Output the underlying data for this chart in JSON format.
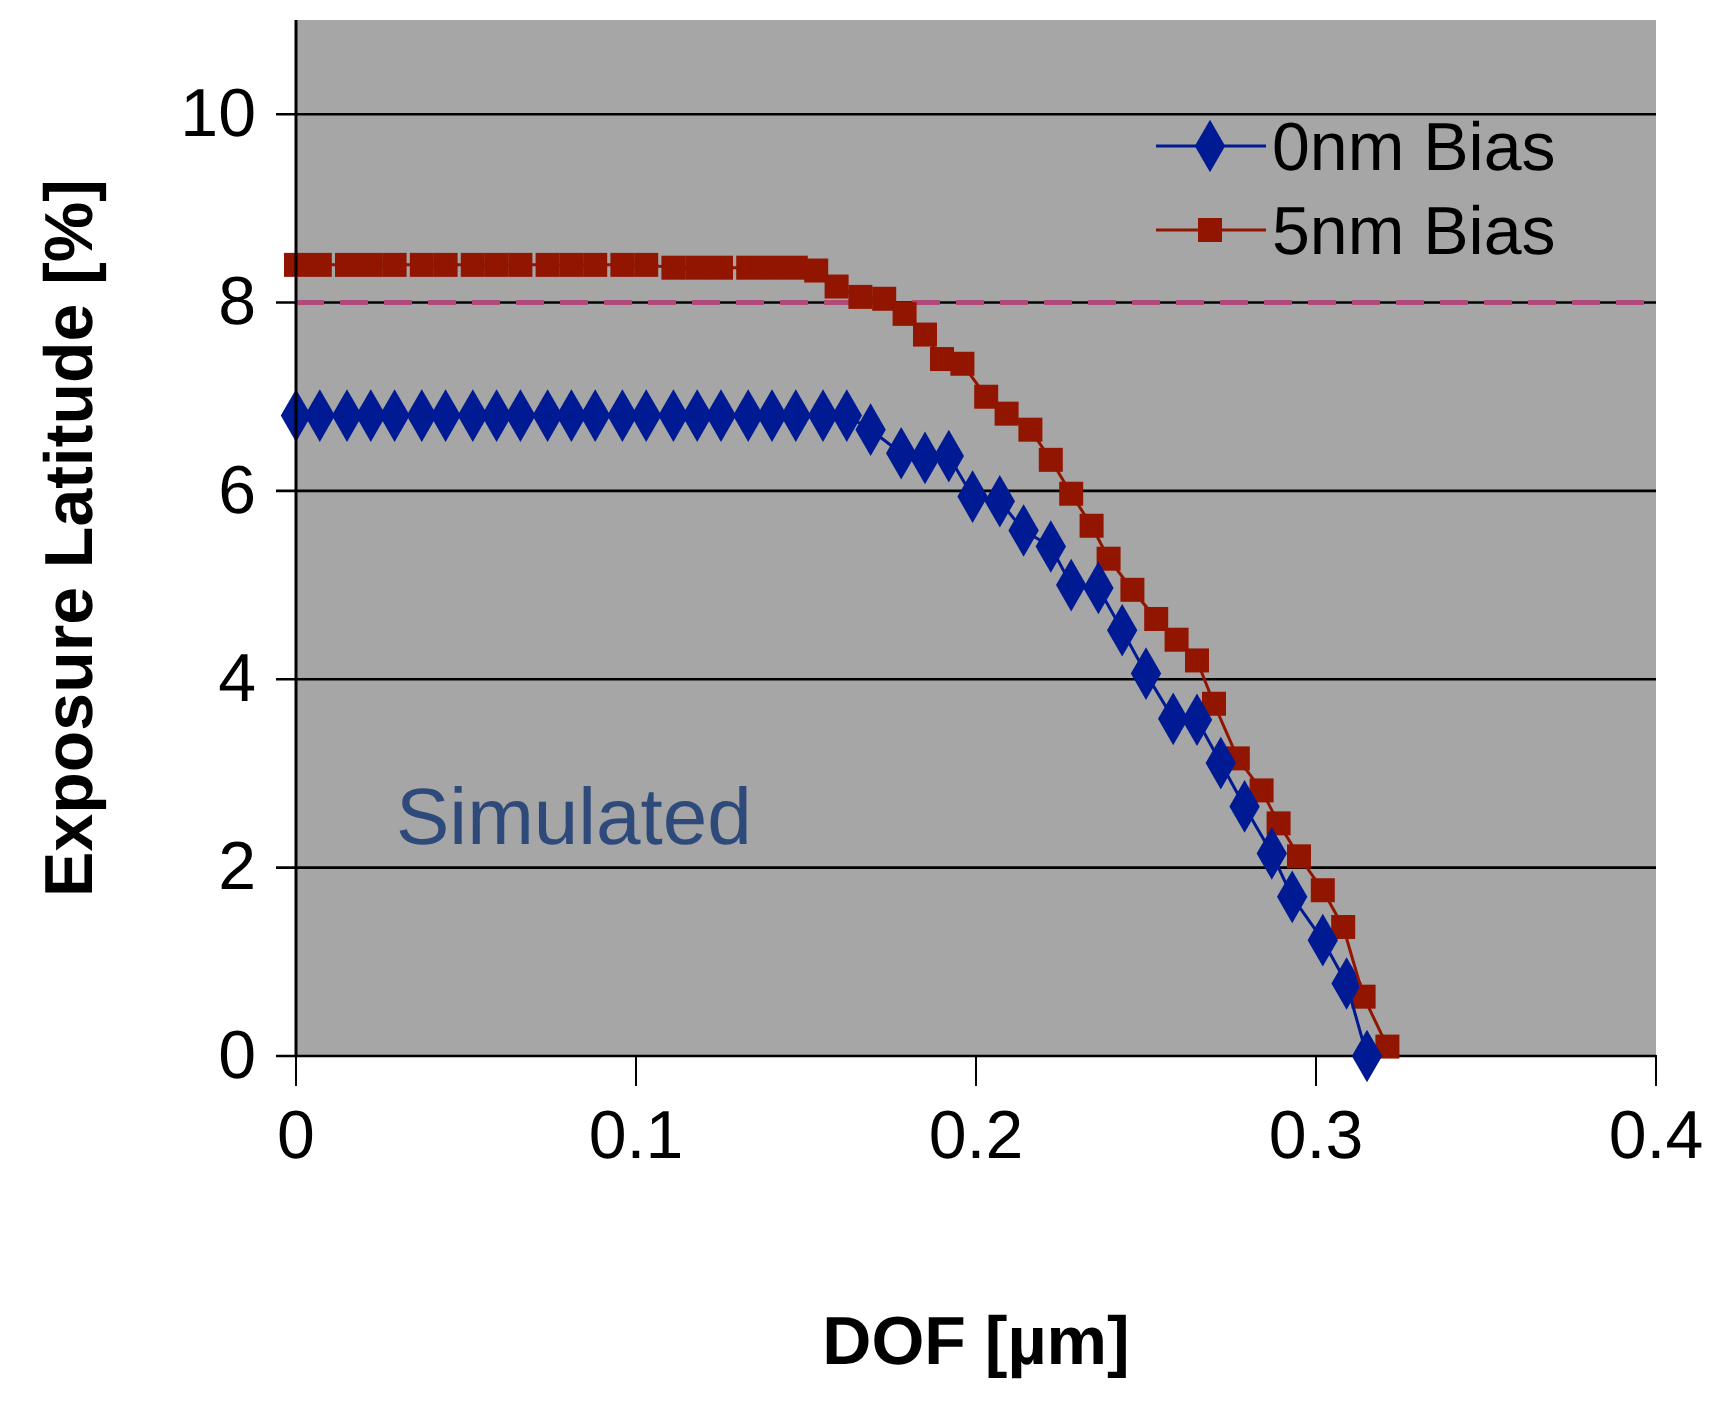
{
  "chart_data": {
    "type": "line",
    "xlabel": "DOF [µm]",
    "ylabel": "Exposure Latitude [%]",
    "xlim": [
      0,
      0.4
    ],
    "xticks": [
      0,
      0.1,
      0.2,
      0.3,
      0.4
    ],
    "ylim": [
      0,
      11
    ],
    "yticks": [
      0,
      2,
      4,
      6,
      8,
      10
    ],
    "grid": "y",
    "legend": "top right",
    "line_style": "solid",
    "annotations": [
      "Simulated"
    ],
    "ref_lines": [
      {
        "axis": "y",
        "value": 8,
        "color": "#b04a7a",
        "line_style": "dashed"
      }
    ],
    "series": [
      {
        "name": "0nm Bias",
        "color": "#001a94",
        "marker": "diamond",
        "x": [
          0,
          0.007,
          0.015,
          0.022,
          0.029,
          0.037,
          0.044,
          0.052,
          0.059,
          0.066,
          0.074,
          0.081,
          0.088,
          0.096,
          0.103,
          0.111,
          0.118,
          0.125,
          0.133,
          0.14,
          0.147,
          0.155,
          0.162,
          0.169,
          0.178,
          0.185,
          0.192,
          0.199,
          0.207,
          0.214,
          0.222,
          0.228,
          0.236,
          0.243,
          0.25,
          0.258,
          0.265,
          0.272,
          0.279,
          0.287,
          0.293,
          0.302,
          0.309,
          0.315
        ],
        "values": [
          6.8,
          6.8,
          6.8,
          6.8,
          6.8,
          6.8,
          6.8,
          6.8,
          6.8,
          6.8,
          6.8,
          6.8,
          6.8,
          6.8,
          6.8,
          6.8,
          6.8,
          6.8,
          6.8,
          6.8,
          6.8,
          6.8,
          6.8,
          6.65,
          6.4,
          6.35,
          6.37,
          5.94,
          5.89,
          5.58,
          5.41,
          5.0,
          4.97,
          4.52,
          4.06,
          3.58,
          3.57,
          3.11,
          2.65,
          2.15,
          1.69,
          1.23,
          0.77,
          0
        ]
      },
      {
        "name": "5nm Bias",
        "color": "#921500",
        "marker": "square",
        "x": [
          0,
          0.007,
          0.015,
          0.022,
          0.029,
          0.037,
          0.044,
          0.052,
          0.059,
          0.066,
          0.074,
          0.081,
          0.088,
          0.096,
          0.103,
          0.111,
          0.118,
          0.125,
          0.133,
          0.14,
          0.147,
          0.153,
          0.159,
          0.166,
          0.173,
          0.179,
          0.185,
          0.19,
          0.196,
          0.203,
          0.209,
          0.216,
          0.222,
          0.228,
          0.234,
          0.239,
          0.246,
          0.253,
          0.259,
          0.265,
          0.27,
          0.277,
          0.284,
          0.289,
          0.295,
          0.302,
          0.308,
          0.314,
          0.321
        ],
        "values": [
          8.4,
          8.4,
          8.4,
          8.4,
          8.4,
          8.4,
          8.4,
          8.4,
          8.4,
          8.4,
          8.4,
          8.4,
          8.4,
          8.4,
          8.4,
          8.37,
          8.37,
          8.37,
          8.37,
          8.37,
          8.37,
          8.34,
          8.17,
          8.06,
          8.04,
          7.88,
          7.66,
          7.4,
          7.35,
          7.0,
          6.82,
          6.65,
          6.33,
          5.97,
          5.63,
          5.28,
          4.95,
          4.64,
          4.42,
          4.2,
          3.74,
          3.16,
          2.82,
          2.47,
          2.12,
          1.76,
          1.37,
          0.63,
          0.1
        ]
      }
    ]
  }
}
